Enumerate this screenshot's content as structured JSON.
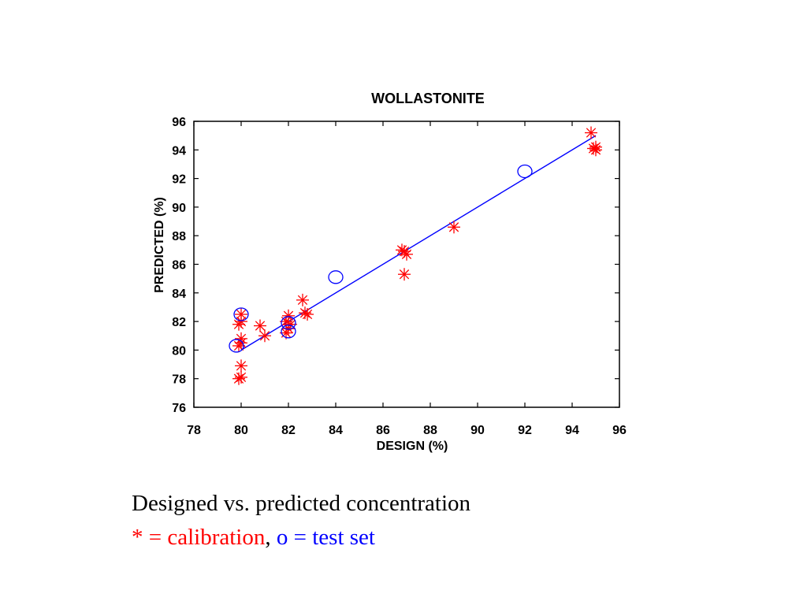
{
  "chart_data": {
    "type": "scatter",
    "title": "WOLLASTONITE",
    "xlabel": "DESIGN (%)",
    "ylabel": "PREDICTED (%)",
    "xlim": [
      78,
      96
    ],
    "ylim": [
      76,
      96
    ],
    "xticks": [
      78,
      80,
      82,
      84,
      86,
      88,
      90,
      92,
      94,
      96
    ],
    "yticks": [
      76,
      78,
      80,
      82,
      84,
      86,
      88,
      90,
      92,
      94,
      96
    ],
    "grid": false,
    "colors": {
      "calibration": "#ff0000",
      "test": "#0000ff",
      "fit": "#0000ff",
      "axes": "#000000"
    },
    "series": [
      {
        "marker": "asterisk",
        "color": "#ff0000",
        "points": [
          [
            79.9,
            78.0
          ],
          [
            80.0,
            78.1
          ],
          [
            80.0,
            78.9
          ],
          [
            79.9,
            80.3
          ],
          [
            80.0,
            80.5
          ],
          [
            80.0,
            80.8
          ],
          [
            79.9,
            81.8
          ],
          [
            80.0,
            82.0
          ],
          [
            80.0,
            82.5
          ],
          [
            80.8,
            81.7
          ],
          [
            81.0,
            81.0
          ],
          [
            81.9,
            81.2
          ],
          [
            82.0,
            81.5
          ],
          [
            81.9,
            82.0
          ],
          [
            82.0,
            82.4
          ],
          [
            82.1,
            81.8
          ],
          [
            82.6,
            83.5
          ],
          [
            82.7,
            82.6
          ],
          [
            82.8,
            82.5
          ],
          [
            86.8,
            87.0
          ],
          [
            86.9,
            86.9
          ],
          [
            87.0,
            86.7
          ],
          [
            86.9,
            85.3
          ],
          [
            89.0,
            88.6
          ],
          [
            94.8,
            95.2
          ],
          [
            94.9,
            94.1
          ],
          [
            95.0,
            94.2
          ],
          [
            95.0,
            94.0
          ]
        ]
      },
      {
        "marker": "circle",
        "color": "#0000ff",
        "points": [
          [
            80.0,
            82.5
          ],
          [
            79.8,
            80.3
          ],
          [
            82.0,
            81.3
          ],
          [
            82.0,
            81.9
          ],
          [
            84.0,
            85.1
          ],
          [
            92.0,
            92.5
          ]
        ]
      },
      {
        "marker": "line",
        "color": "#0000ff",
        "points": [
          [
            80.0,
            80.0
          ],
          [
            95.0,
            95.0
          ]
        ]
      }
    ]
  },
  "caption": {
    "line1": "Designed vs. predicted concentration",
    "calibration_symbol": "* =",
    "calibration_text": "calibration",
    "separator": ",",
    "test_symbol": "o =",
    "test_text": "test set"
  }
}
